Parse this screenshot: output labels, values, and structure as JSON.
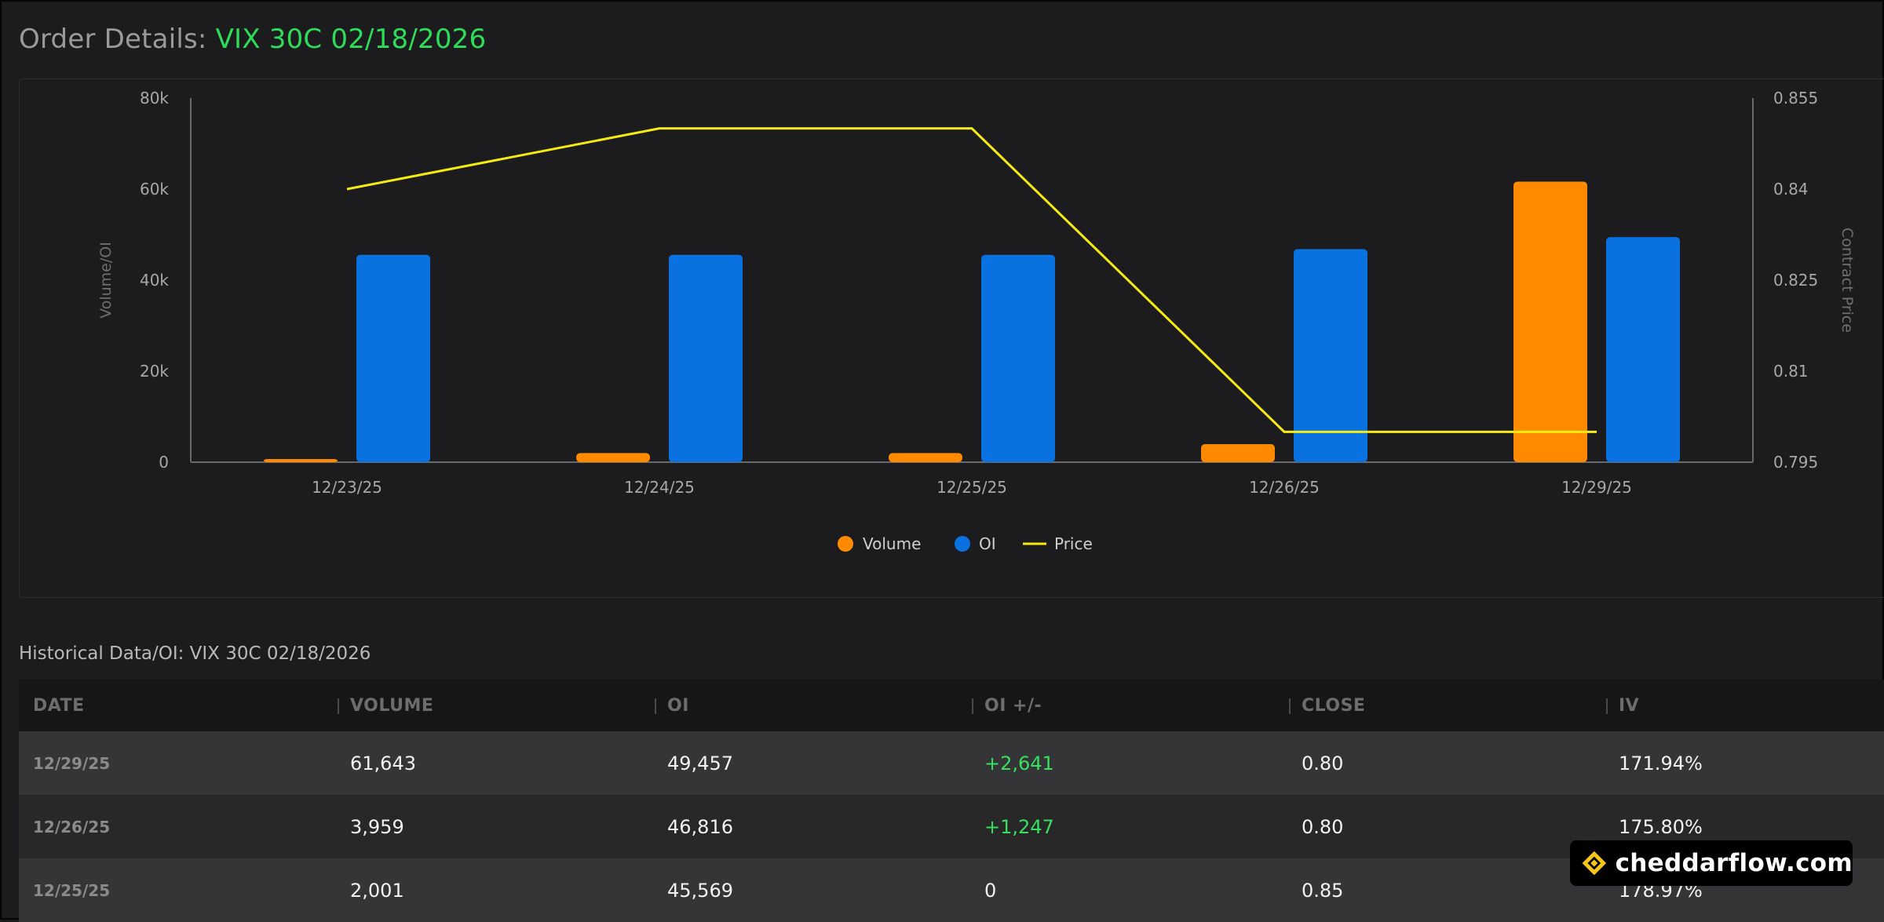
{
  "header": {
    "title_label": "Order Details:",
    "title_symbol": "VIX 30C 02/18/2026"
  },
  "chart_data": {
    "type": "bar",
    "categories": [
      "12/23/25",
      "12/24/25",
      "12/25/25",
      "12/26/25",
      "12/29/25"
    ],
    "series": [
      {
        "name": "Volume",
        "type": "bar",
        "axis": "left",
        "color": "#ff8a00",
        "values": [
          700,
          2001,
          2001,
          3959,
          61643
        ]
      },
      {
        "name": "OI",
        "type": "bar",
        "axis": "left",
        "color": "#0a72e0",
        "values": [
          45569,
          45569,
          45569,
          46816,
          49457
        ]
      },
      {
        "name": "Price",
        "type": "line",
        "axis": "right",
        "color": "#f5ea12",
        "values": [
          0.84,
          0.85,
          0.85,
          0.8,
          0.8
        ]
      }
    ],
    "ylabel": "Volume/OI",
    "y2label": "Contract Price",
    "ylim": [
      0,
      80000
    ],
    "y2lim": [
      0.795,
      0.855
    ],
    "yticks": [
      "0",
      "20k",
      "40k",
      "60k",
      "80k"
    ],
    "y2ticks": [
      "0.795",
      "0.81",
      "0.825",
      "0.84",
      "0.855"
    ],
    "legend": [
      "Volume",
      "OI",
      "Price"
    ],
    "legend_position": "bottom-center",
    "grid": false
  },
  "table": {
    "title": "Historical Data/OI: VIX 30C 02/18/2026",
    "columns": [
      "DATE",
      "VOLUME",
      "OI",
      "OI +/-",
      "CLOSE",
      "IV"
    ],
    "rows": [
      {
        "date": "12/29/25",
        "volume": "61,643",
        "oi": "49,457",
        "oi_change": "+2,641",
        "close": "0.80",
        "iv": "171.94%"
      },
      {
        "date": "12/26/25",
        "volume": "3,959",
        "oi": "46,816",
        "oi_change": "+1,247",
        "close": "0.80",
        "iv": "175.80%"
      },
      {
        "date": "12/25/25",
        "volume": "2,001",
        "oi": "45,569",
        "oi_change": "0",
        "close": "0.85",
        "iv": "178.97%"
      }
    ]
  },
  "watermark": {
    "text": "cheddarflow.com",
    "icon": "cheddarflow-logo-icon",
    "icon_color": "#f5c518"
  },
  "colors": {
    "positive": "#37e05e",
    "symbol": "#2fdc5a"
  }
}
